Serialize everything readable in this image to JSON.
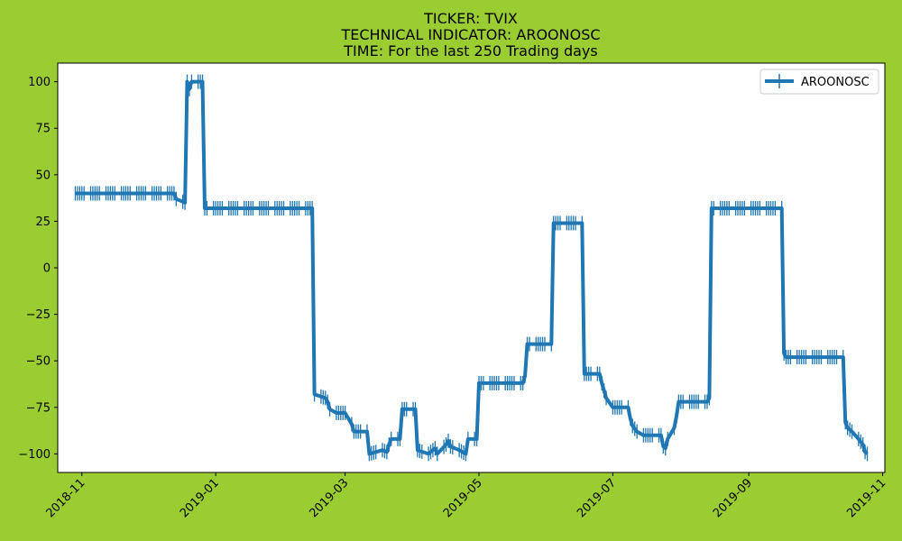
{
  "chart_data": {
    "type": "line",
    "title_lines": [
      "TICKER:  TVIX",
      "TECHNICAL INDICATOR:  AROONOSC",
      "TIME: For the last 250 Trading days"
    ],
    "xlabel": "",
    "ylabel": "",
    "xlim": [
      "2018-10-21",
      "2019-11-02"
    ],
    "ylim": [
      -110,
      110
    ],
    "grid": false,
    "legend_position": "top-right",
    "x_ticks": [
      {
        "date": "2018-11-01",
        "label": "2018-11"
      },
      {
        "date": "2019-01-01",
        "label": "2019-01"
      },
      {
        "date": "2019-03-01",
        "label": "2019-03"
      },
      {
        "date": "2019-05-01",
        "label": "2019-05"
      },
      {
        "date": "2019-07-01",
        "label": "2019-07"
      },
      {
        "date": "2019-09-01",
        "label": "2019-09"
      },
      {
        "date": "2019-11-01",
        "label": "2019-11"
      }
    ],
    "y_ticks": [
      {
        "value": 100,
        "label": "100"
      },
      {
        "value": 75,
        "label": "75"
      },
      {
        "value": 50,
        "label": "50"
      },
      {
        "value": 25,
        "label": "25"
      },
      {
        "value": 0,
        "label": "0"
      },
      {
        "value": -25,
        "label": "−25"
      },
      {
        "value": -50,
        "label": "−50"
      },
      {
        "value": -75,
        "label": "−75"
      },
      {
        "value": -100,
        "label": "−100"
      }
    ],
    "series": [
      {
        "name": "AROONOSC",
        "color": "#1f77b4",
        "marker": "vertical-line",
        "points": [
          [
            "2018-10-29",
            40
          ],
          [
            "2018-12-13",
            40
          ],
          [
            "2018-12-14",
            37
          ],
          [
            "2018-12-18",
            35
          ],
          [
            "2018-12-19",
            100
          ],
          [
            "2018-12-20",
            96
          ],
          [
            "2018-12-21",
            100
          ],
          [
            "2018-12-26",
            100
          ],
          [
            "2018-12-27",
            32
          ],
          [
            "2019-02-14",
            32
          ],
          [
            "2019-02-15",
            -68
          ],
          [
            "2019-02-20",
            -70
          ],
          [
            "2019-02-21",
            -72
          ],
          [
            "2019-02-22",
            -76
          ],
          [
            "2019-02-25",
            -78
          ],
          [
            "2019-03-01",
            -78
          ],
          [
            "2019-03-04",
            -84
          ],
          [
            "2019-03-05",
            -88
          ],
          [
            "2019-03-11",
            -88
          ],
          [
            "2019-03-12",
            -100
          ],
          [
            "2019-03-18",
            -98
          ],
          [
            "2019-03-20",
            -99
          ],
          [
            "2019-03-21",
            -95
          ],
          [
            "2019-03-22",
            -92
          ],
          [
            "2019-03-26",
            -92
          ],
          [
            "2019-03-27",
            -76
          ],
          [
            "2019-04-02",
            -76
          ],
          [
            "2019-04-03",
            -98
          ],
          [
            "2019-04-08",
            -100
          ],
          [
            "2019-04-11",
            -97
          ],
          [
            "2019-04-12",
            -100
          ],
          [
            "2019-04-16",
            -95
          ],
          [
            "2019-04-17",
            -93
          ],
          [
            "2019-04-18",
            -96
          ],
          [
            "2019-04-22",
            -98
          ],
          [
            "2019-04-25",
            -100
          ],
          [
            "2019-04-26",
            -92
          ],
          [
            "2019-04-30",
            -92
          ],
          [
            "2019-05-01",
            -62
          ],
          [
            "2019-05-21",
            -62
          ],
          [
            "2019-05-22",
            -58
          ],
          [
            "2019-05-23",
            -41
          ],
          [
            "2019-06-03",
            -41
          ],
          [
            "2019-06-04",
            24
          ],
          [
            "2019-06-17",
            24
          ],
          [
            "2019-06-18",
            -57
          ],
          [
            "2019-06-25",
            -57
          ],
          [
            "2019-06-26",
            -62
          ],
          [
            "2019-06-28",
            -70
          ],
          [
            "2019-07-01",
            -75
          ],
          [
            "2019-07-08",
            -75
          ],
          [
            "2019-07-09",
            -81
          ],
          [
            "2019-07-10",
            -85
          ],
          [
            "2019-07-12",
            -88
          ],
          [
            "2019-07-15",
            -90
          ],
          [
            "2019-07-23",
            -90
          ],
          [
            "2019-07-24",
            -96
          ],
          [
            "2019-07-25",
            -97
          ],
          [
            "2019-07-26",
            -92
          ],
          [
            "2019-07-29",
            -86
          ],
          [
            "2019-07-30",
            -80
          ],
          [
            "2019-07-31",
            -72
          ],
          [
            "2019-08-13",
            -72
          ],
          [
            "2019-08-14",
            -70
          ],
          [
            "2019-08-15",
            32
          ],
          [
            "2019-09-16",
            32
          ],
          [
            "2019-09-17",
            -46
          ],
          [
            "2019-09-18",
            -48
          ],
          [
            "2019-10-14",
            -48
          ],
          [
            "2019-10-15",
            -83
          ],
          [
            "2019-10-16",
            -86
          ],
          [
            "2019-10-18",
            -88
          ],
          [
            "2019-10-21",
            -92
          ],
          [
            "2019-10-23",
            -95
          ],
          [
            "2019-10-24",
            -99
          ],
          [
            "2019-10-25",
            -100
          ]
        ]
      }
    ]
  }
}
